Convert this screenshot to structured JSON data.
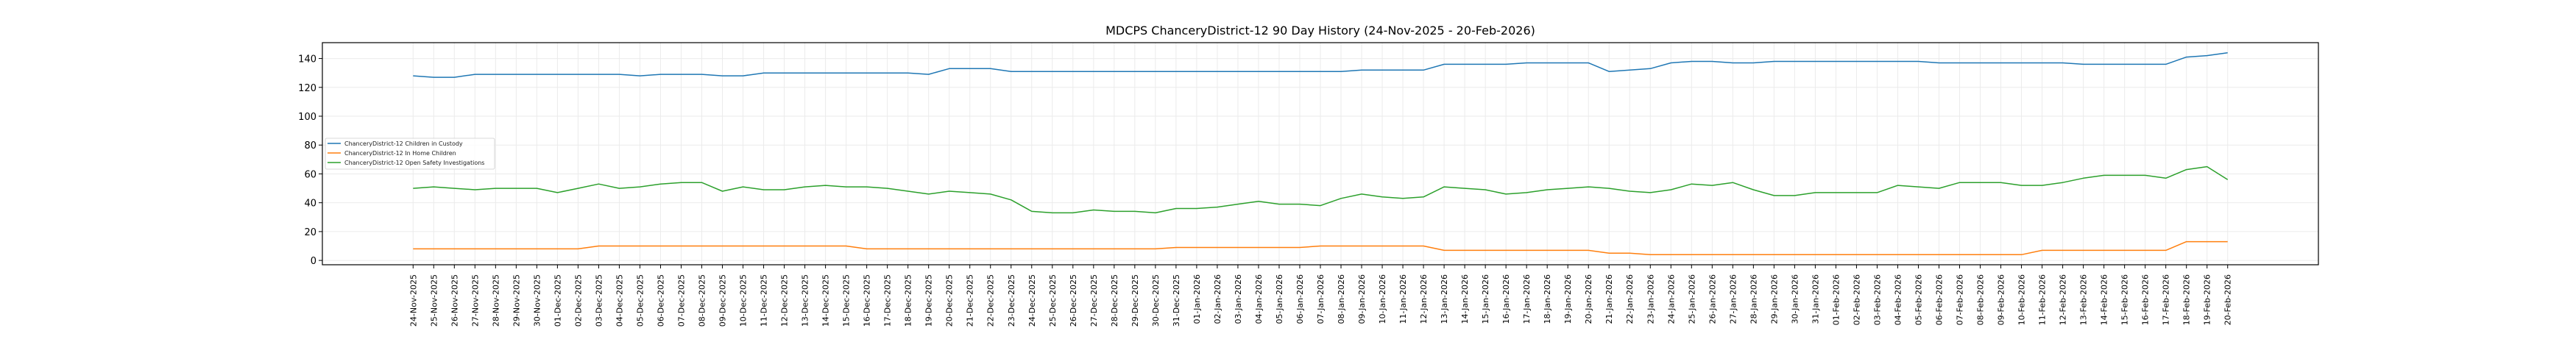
{
  "chart_data": {
    "type": "line",
    "title": "MDCPS ChanceryDistrict-12 90 Day History (24-Nov-2025 - 20-Feb-2026)",
    "xlabel": "",
    "ylabel": "",
    "ylim": [
      -3,
      151
    ],
    "xlim": [
      -4.4,
      92.4
    ],
    "yticks": [
      0,
      20,
      40,
      60,
      80,
      100,
      120,
      140
    ],
    "grid": true,
    "legend_placement": "center-left",
    "categories": [
      "24-Nov-2025",
      "25-Nov-2025",
      "26-Nov-2025",
      "27-Nov-2025",
      "28-Nov-2025",
      "29-Nov-2025",
      "30-Nov-2025",
      "01-Dec-2025",
      "02-Dec-2025",
      "03-Dec-2025",
      "04-Dec-2025",
      "05-Dec-2025",
      "06-Dec-2025",
      "07-Dec-2025",
      "08-Dec-2025",
      "09-Dec-2025",
      "10-Dec-2025",
      "11-Dec-2025",
      "12-Dec-2025",
      "13-Dec-2025",
      "14-Dec-2025",
      "15-Dec-2025",
      "16-Dec-2025",
      "17-Dec-2025",
      "18-Dec-2025",
      "19-Dec-2025",
      "20-Dec-2025",
      "21-Dec-2025",
      "22-Dec-2025",
      "23-Dec-2025",
      "24-Dec-2025",
      "25-Dec-2025",
      "26-Dec-2025",
      "27-Dec-2025",
      "28-Dec-2025",
      "29-Dec-2025",
      "30-Dec-2025",
      "31-Dec-2025",
      "01-Jan-2026",
      "02-Jan-2026",
      "03-Jan-2026",
      "04-Jan-2026",
      "05-Jan-2026",
      "06-Jan-2026",
      "07-Jan-2026",
      "08-Jan-2026",
      "09-Jan-2026",
      "10-Jan-2026",
      "11-Jan-2026",
      "12-Jan-2026",
      "13-Jan-2026",
      "14-Jan-2026",
      "15-Jan-2026",
      "16-Jan-2026",
      "17-Jan-2026",
      "18-Jan-2026",
      "19-Jan-2026",
      "20-Jan-2026",
      "21-Jan-2026",
      "22-Jan-2026",
      "23-Jan-2026",
      "24-Jan-2026",
      "25-Jan-2026",
      "26-Jan-2026",
      "27-Jan-2026",
      "28-Jan-2026",
      "29-Jan-2026",
      "30-Jan-2026",
      "31-Jan-2026",
      "01-Feb-2026",
      "02-Feb-2026",
      "03-Feb-2026",
      "04-Feb-2026",
      "05-Feb-2026",
      "06-Feb-2026",
      "07-Feb-2026",
      "08-Feb-2026",
      "09-Feb-2026",
      "10-Feb-2026",
      "11-Feb-2026",
      "12-Feb-2026",
      "13-Feb-2026",
      "14-Feb-2026",
      "15-Feb-2026",
      "16-Feb-2026",
      "17-Feb-2026",
      "18-Feb-2026",
      "19-Feb-2026",
      "20-Feb-2026"
    ],
    "series": [
      {
        "name": "ChanceryDistrict-12 Children in Custody",
        "color": "#1f77b4",
        "values": [
          128,
          127,
          127,
          129,
          129,
          129,
          129,
          129,
          129,
          129,
          129,
          128,
          129,
          129,
          129,
          128,
          128,
          130,
          130,
          130,
          130,
          130,
          130,
          130,
          130,
          129,
          133,
          133,
          133,
          131,
          131,
          131,
          131,
          131,
          131,
          131,
          131,
          131,
          131,
          131,
          131,
          131,
          131,
          131,
          131,
          131,
          132,
          132,
          132,
          132,
          136,
          136,
          136,
          136,
          137,
          137,
          137,
          137,
          131,
          132,
          133,
          137,
          138,
          138,
          137,
          137,
          138,
          138,
          138,
          138,
          138,
          138,
          138,
          138,
          137,
          137,
          137,
          137,
          137,
          137,
          137,
          136,
          136,
          136,
          136,
          136,
          141,
          142,
          144
        ]
      },
      {
        "name": "ChanceryDistrict-12 In Home Children",
        "color": "#ff7f0e",
        "values": [
          8,
          8,
          8,
          8,
          8,
          8,
          8,
          8,
          8,
          10,
          10,
          10,
          10,
          10,
          10,
          10,
          10,
          10,
          10,
          10,
          10,
          10,
          8,
          8,
          8,
          8,
          8,
          8,
          8,
          8,
          8,
          8,
          8,
          8,
          8,
          8,
          8,
          9,
          9,
          9,
          9,
          9,
          9,
          9,
          10,
          10,
          10,
          10,
          10,
          10,
          7,
          7,
          7,
          7,
          7,
          7,
          7,
          7,
          5,
          5,
          4,
          4,
          4,
          4,
          4,
          4,
          4,
          4,
          4,
          4,
          4,
          4,
          4,
          4,
          4,
          4,
          4,
          4,
          4,
          7,
          7,
          7,
          7,
          7,
          7,
          7,
          13,
          13,
          13
        ]
      },
      {
        "name": "ChanceryDistrict-12 Open Safety Investigations",
        "color": "#2ca02c",
        "values": [
          50,
          51,
          50,
          49,
          50,
          50,
          50,
          47,
          50,
          53,
          50,
          51,
          53,
          54,
          54,
          48,
          51,
          49,
          49,
          51,
          52,
          51,
          51,
          50,
          48,
          46,
          48,
          47,
          46,
          42,
          34,
          33,
          33,
          35,
          34,
          34,
          33,
          36,
          36,
          37,
          39,
          41,
          39,
          39,
          38,
          43,
          46,
          44,
          43,
          44,
          51,
          50,
          49,
          46,
          47,
          49,
          50,
          51,
          50,
          48,
          47,
          49,
          53,
          52,
          54,
          49,
          45,
          45,
          47,
          47,
          47,
          47,
          52,
          51,
          50,
          54,
          54,
          54,
          52,
          52,
          54,
          57,
          59,
          59,
          59,
          57,
          63,
          65,
          56
        ]
      }
    ]
  }
}
